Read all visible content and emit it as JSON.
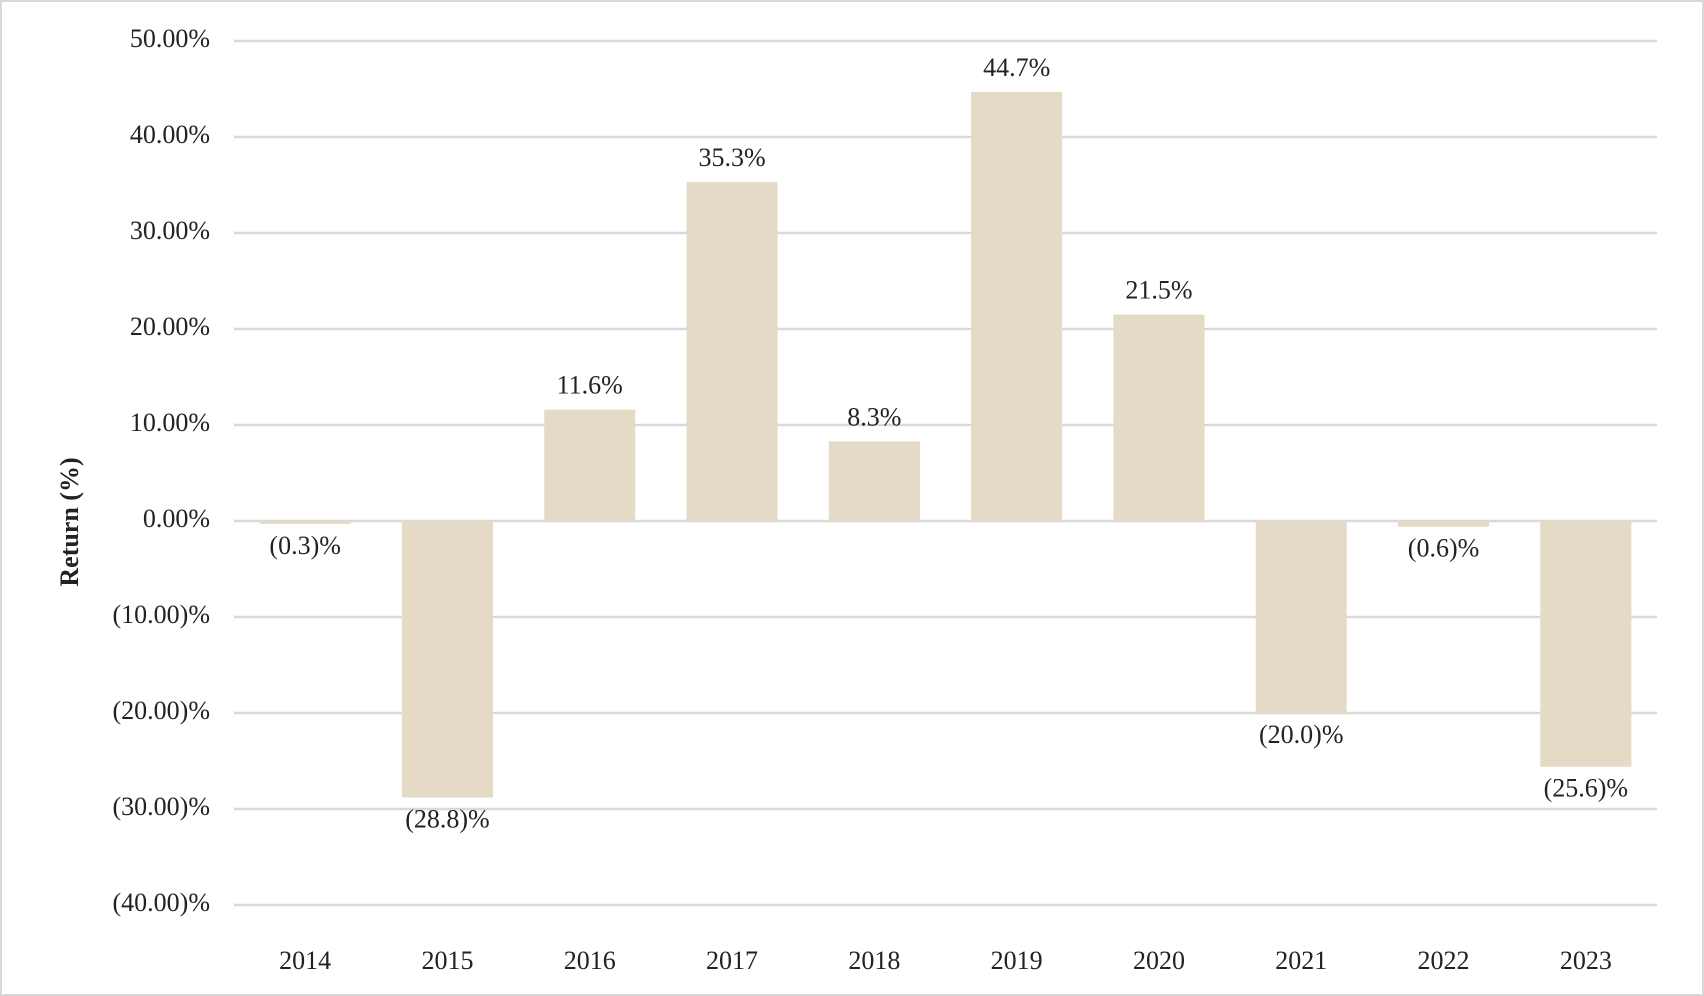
{
  "chart_data": {
    "type": "bar",
    "y_label": "Return (%)",
    "categories": [
      "2014",
      "2015",
      "2016",
      "2017",
      "2018",
      "2019",
      "2020",
      "2021",
      "2022",
      "2023"
    ],
    "values": [
      -0.3,
      -28.8,
      11.6,
      35.3,
      8.3,
      44.7,
      21.5,
      -20.0,
      -0.6,
      -25.6
    ],
    "value_labels": [
      "(0.3)%",
      "(28.8)%",
      "11.6%",
      "35.3%",
      "8.3%",
      "44.7%",
      "21.5%",
      "(20.0)%",
      "(0.6)%",
      "(25.6)%"
    ],
    "color": "#e5dac6",
    "ylim": [
      -40,
      50
    ],
    "yticks": [
      {
        "value": -40,
        "label": "(40.00)%"
      },
      {
        "value": -30,
        "label": "(30.00)%"
      },
      {
        "value": -20,
        "label": "(20.00)%"
      },
      {
        "value": -10,
        "label": "(10.00)%"
      },
      {
        "value": 0,
        "label": "0.00%"
      },
      {
        "value": 10,
        "label": "10.00%"
      },
      {
        "value": 20,
        "label": "20.00%"
      },
      {
        "value": 30,
        "label": "30.00%"
      },
      {
        "value": 40,
        "label": "40.00%"
      },
      {
        "value": 50,
        "label": "50.00%"
      }
    ],
    "grid": true
  }
}
